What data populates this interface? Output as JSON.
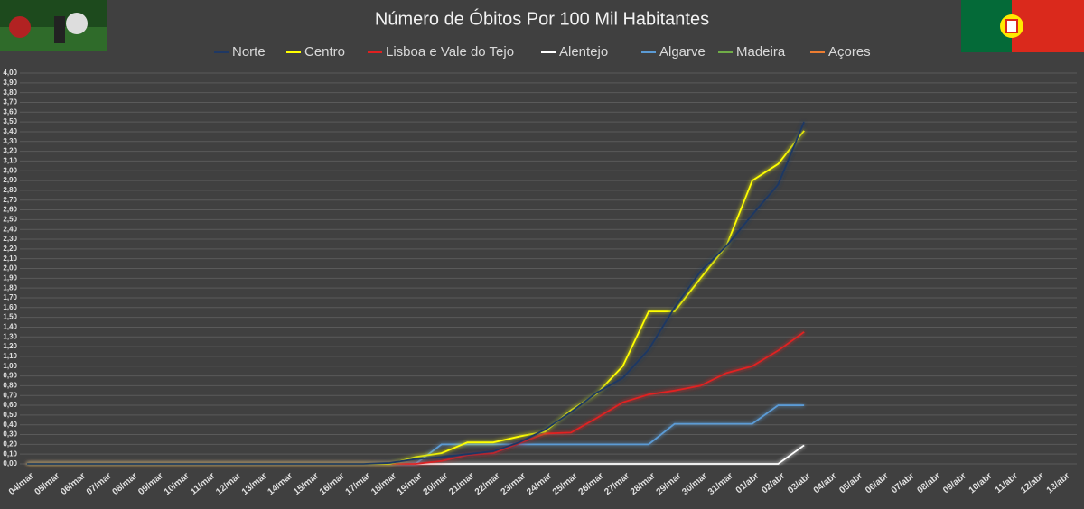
{
  "chart_data": {
    "type": "line",
    "title": "Número de Óbitos Por 100 Mil Habitantes",
    "categories": [
      "04/mar",
      "05/mar",
      "06/mar",
      "07/mar",
      "08/mar",
      "09/mar",
      "10/mar",
      "11/mar",
      "12/mar",
      "13/mar",
      "14/mar",
      "15/mar",
      "16/mar",
      "17/mar",
      "18/mar",
      "19/mar",
      "20/mar",
      "21/mar",
      "22/mar",
      "23/mar",
      "24/mar",
      "25/mar",
      "26/mar",
      "27/mar",
      "28/mar",
      "29/mar",
      "30/mar",
      "31/mar",
      "01/abr",
      "02/abr",
      "03/abr",
      "04/abr",
      "05/abr",
      "06/abr",
      "07/abr",
      "08/abr",
      "09/abr",
      "10/abr",
      "11/abr",
      "12/abr",
      "13/abr"
    ],
    "series": [
      {
        "name": "Norte",
        "color": "#1f3864",
        "values": [
          0,
          0,
          0,
          0,
          0,
          0,
          0,
          0,
          0,
          0,
          0,
          0,
          0,
          0,
          0.01,
          0.05,
          0.07,
          0.1,
          0.13,
          0.22,
          0.35,
          0.53,
          0.73,
          0.88,
          1.17,
          1.6,
          1.97,
          2.23,
          2.55,
          2.86,
          3.5,
          null,
          null,
          null,
          null,
          null,
          null,
          null,
          null,
          null,
          null
        ]
      },
      {
        "name": "Centro",
        "color": "#ffff00",
        "values": [
          0,
          0,
          0,
          0,
          0,
          0,
          0,
          0,
          0,
          0,
          0,
          0,
          0,
          0,
          0,
          0.07,
          0.11,
          0.22,
          0.22,
          0.28,
          0.33,
          0.55,
          0.72,
          1.0,
          1.56,
          1.56,
          1.9,
          2.23,
          2.9,
          3.07,
          3.41,
          null,
          null,
          null,
          null,
          null,
          null,
          null,
          null,
          null,
          null
        ]
      },
      {
        "name": "Lisboa e Vale do Tejo",
        "color": "#e02020",
        "values": [
          0,
          0,
          0,
          0,
          0,
          0,
          0,
          0,
          0,
          0,
          0,
          0,
          0,
          0,
          0,
          0,
          0.03,
          0.09,
          0.11,
          0.21,
          0.31,
          0.32,
          0.47,
          0.63,
          0.71,
          0.75,
          0.8,
          0.93,
          1.0,
          1.16,
          1.35,
          null,
          null,
          null,
          null,
          null,
          null,
          null,
          null,
          null,
          null
        ]
      },
      {
        "name": "Alentejo",
        "color": "#ffffff",
        "values": [
          0,
          0,
          0,
          0,
          0,
          0,
          0,
          0,
          0,
          0,
          0,
          0,
          0,
          0,
          0,
          0,
          0,
          0,
          0,
          0,
          0,
          0,
          0,
          0,
          0,
          0,
          0,
          0,
          0,
          0,
          0.19,
          null,
          null,
          null,
          null,
          null,
          null,
          null,
          null,
          null,
          null
        ]
      },
      {
        "name": "Algarve",
        "color": "#5b9bd5",
        "values": [
          0,
          0,
          0,
          0,
          0,
          0,
          0,
          0,
          0,
          0,
          0,
          0,
          0,
          0,
          0,
          0,
          0.2,
          0.2,
          0.2,
          0.2,
          0.2,
          0.2,
          0.2,
          0.2,
          0.2,
          0.41,
          0.41,
          0.41,
          0.41,
          0.6,
          0.6,
          null,
          null,
          null,
          null,
          null,
          null,
          null,
          null,
          null,
          null
        ]
      },
      {
        "name": "Madeira",
        "color": "#70ad47",
        "values": [
          0,
          0,
          0,
          0,
          0,
          0,
          0,
          0,
          0,
          0,
          0,
          0,
          0,
          0,
          0,
          0,
          0,
          0,
          0,
          0,
          0,
          0,
          0,
          0,
          0,
          0,
          0,
          0,
          0,
          0,
          0,
          null,
          null,
          null,
          null,
          null,
          null,
          null,
          null,
          null,
          null
        ]
      },
      {
        "name": "Açores",
        "color": "#ed7d31",
        "values": [
          0,
          0,
          0,
          0,
          0,
          0,
          0,
          0,
          0,
          0,
          0,
          0,
          0,
          0,
          0,
          0,
          0,
          0,
          0,
          0,
          0,
          0,
          0,
          0,
          0,
          0,
          0,
          0,
          0,
          0,
          0,
          null,
          null,
          null,
          null,
          null,
          null,
          null,
          null,
          null,
          null
        ]
      }
    ],
    "ylim": [
      0,
      4
    ],
    "yticks": [
      {
        "value": 0,
        "label": "0,00"
      },
      {
        "value": 0.1,
        "label": "0,10"
      },
      {
        "value": 0.2,
        "label": "0,20"
      },
      {
        "value": 0.3,
        "label": "0,30"
      },
      {
        "value": 0.4,
        "label": "0,40"
      },
      {
        "value": 0.5,
        "label": "0,50"
      },
      {
        "value": 0.6,
        "label": "0,60"
      },
      {
        "value": 0.7,
        "label": "0,70"
      },
      {
        "value": 0.8,
        "label": "0,80"
      },
      {
        "value": 0.9,
        "label": "0,90"
      },
      {
        "value": 1.0,
        "label": "1,00"
      },
      {
        "value": 1.1,
        "label": "1,10"
      },
      {
        "value": 1.2,
        "label": "1,20"
      },
      {
        "value": 1.3,
        "label": "1,30"
      },
      {
        "value": 1.4,
        "label": "1,40"
      },
      {
        "value": 1.5,
        "label": "1,50"
      },
      {
        "value": 1.6,
        "label": "1,60"
      },
      {
        "value": 1.7,
        "label": "1,70"
      },
      {
        "value": 1.8,
        "label": "1,80"
      },
      {
        "value": 1.9,
        "label": "1,90"
      },
      {
        "value": 2.0,
        "label": "2,00"
      },
      {
        "value": 2.1,
        "label": "2,10"
      },
      {
        "value": 2.2,
        "label": "2,20"
      },
      {
        "value": 2.3,
        "label": "2,30"
      },
      {
        "value": 2.4,
        "label": "2,40"
      },
      {
        "value": 2.5,
        "label": "2,50"
      },
      {
        "value": 2.6,
        "label": "2,60"
      },
      {
        "value": 2.7,
        "label": "2,70"
      },
      {
        "value": 2.8,
        "label": "2,80"
      },
      {
        "value": 2.9,
        "label": "2,90"
      },
      {
        "value": 3.0,
        "label": "3,00"
      },
      {
        "value": 3.1,
        "label": "3,10"
      },
      {
        "value": 3.2,
        "label": "3,20"
      },
      {
        "value": 3.3,
        "label": "3,30"
      },
      {
        "value": 3.4,
        "label": "3,40"
      },
      {
        "value": 3.5,
        "label": "3,50"
      },
      {
        "value": 3.6,
        "label": "3,60"
      },
      {
        "value": 3.7,
        "label": "3,70"
      },
      {
        "value": 3.8,
        "label": "3,80"
      },
      {
        "value": 3.9,
        "label": "3,90"
      },
      {
        "value": 4.0,
        "label": "4,00"
      }
    ],
    "grid": true,
    "legend": "top"
  }
}
